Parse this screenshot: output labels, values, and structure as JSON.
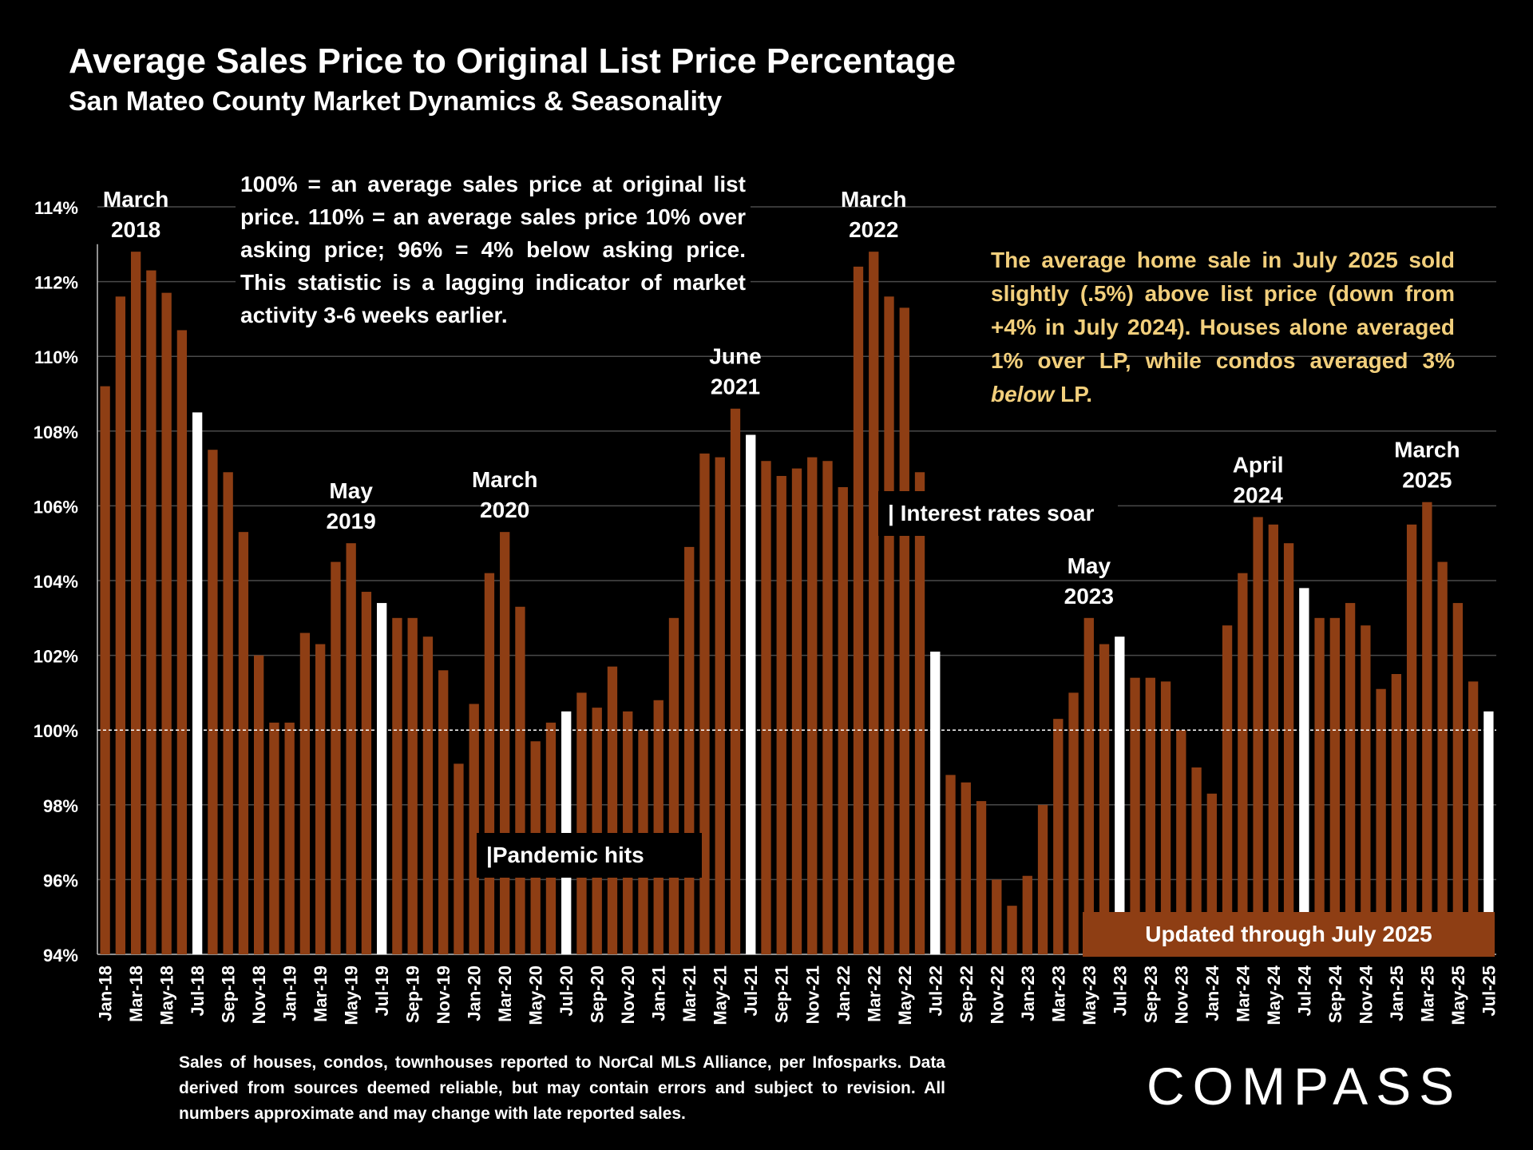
{
  "header": {
    "title": "Average Sales Price to Original List Price Percentage",
    "subtitle": "San Mateo County Market Dynamics & Seasonality"
  },
  "note": "100% = an average sales price at original list price. 110% = an average sales price 10% over asking price; 96% = 4% below asking price. This statistic is a lagging indicator of market activity 3-6 weeks earlier.",
  "summary": {
    "part1": "The average home sale in July 2025 sold slightly (.5%) above list price (down from +4% in July 2024). Houses alone averaged 1% over LP, while condos averaged 3% ",
    "emph": "below",
    "part2": " LP."
  },
  "footnote": "Sales of houses, condos, townhouses reported to NorCal MLS Alliance, per Infosparks. Data derived from sources deemed reliable, but may contain errors and subject to revision. All numbers approximate and may change with late reported sales.",
  "logo": "COMPASS",
  "colors": {
    "bar": "#8e3e14",
    "highlight": "#ffffff",
    "summary_text": "#f2cf7c",
    "background": "#000000"
  },
  "chart_data": {
    "type": "bar",
    "y_unit": "%",
    "ylim": [
      94,
      114
    ],
    "yticks": [
      94,
      96,
      98,
      100,
      102,
      104,
      106,
      108,
      110,
      112,
      114
    ],
    "ytick_labels": [
      "94%",
      "96%",
      "98%",
      "100%",
      "102%",
      "104%",
      "106%",
      "108%",
      "110%",
      "112%",
      "114%"
    ],
    "reference_line": 100,
    "grid": true,
    "categories": [
      "Jan-18",
      "Feb-18",
      "Mar-18",
      "Apr-18",
      "May-18",
      "Jun-18",
      "Jul-18",
      "Aug-18",
      "Sep-18",
      "Oct-18",
      "Nov-18",
      "Dec-18",
      "Jan-19",
      "Feb-19",
      "Mar-19",
      "Apr-19",
      "May-19",
      "Jun-19",
      "Jul-19",
      "Aug-19",
      "Sep-19",
      "Oct-19",
      "Nov-19",
      "Dec-19",
      "Jan-20",
      "Feb-20",
      "Mar-20",
      "Apr-20",
      "May-20",
      "Jun-20",
      "Jul-20",
      "Aug-20",
      "Sep-20",
      "Oct-20",
      "Nov-20",
      "Dec-20",
      "Jan-21",
      "Feb-21",
      "Mar-21",
      "Apr-21",
      "May-21",
      "Jun-21",
      "Jul-21",
      "Aug-21",
      "Sep-21",
      "Oct-21",
      "Nov-21",
      "Dec-21",
      "Jan-22",
      "Feb-22",
      "Mar-22",
      "Apr-22",
      "May-22",
      "Jun-22",
      "Jul-22",
      "Aug-22",
      "Sep-22",
      "Oct-22",
      "Nov-22",
      "Dec-22",
      "Jan-23",
      "Feb-23",
      "Mar-23",
      "Apr-23",
      "May-23",
      "Jun-23",
      "Jul-23",
      "Aug-23",
      "Sep-23",
      "Oct-23",
      "Nov-23",
      "Dec-23",
      "Jan-24",
      "Feb-24",
      "Mar-24",
      "Apr-24",
      "May-24",
      "Jun-24",
      "Jul-24",
      "Aug-24",
      "Sep-24",
      "Oct-24",
      "Nov-24",
      "Dec-24",
      "Jan-25",
      "Feb-25",
      "Mar-25",
      "Apr-25",
      "May-25",
      "Jun-25",
      "Jul-25"
    ],
    "values": [
      109.2,
      111.6,
      112.8,
      112.3,
      111.7,
      110.7,
      108.5,
      107.5,
      106.9,
      105.3,
      102.0,
      100.2,
      100.2,
      102.6,
      102.3,
      104.5,
      105.0,
      103.7,
      103.4,
      103.0,
      103.0,
      102.5,
      101.6,
      99.1,
      100.7,
      104.2,
      105.3,
      103.3,
      99.7,
      100.2,
      100.5,
      101.0,
      100.6,
      101.7,
      100.5,
      100.0,
      100.8,
      103.0,
      104.9,
      107.4,
      107.3,
      108.6,
      107.9,
      107.2,
      106.8,
      107.0,
      107.3,
      107.2,
      106.5,
      112.4,
      112.8,
      111.6,
      111.3,
      106.9,
      102.1,
      98.8,
      98.6,
      98.1,
      96.0,
      95.3,
      96.1,
      98.0,
      100.3,
      101.0,
      103.0,
      102.3,
      102.5,
      101.4,
      101.4,
      101.3,
      100.0,
      99.0,
      98.3,
      102.8,
      104.2,
      105.7,
      105.5,
      105.0,
      103.8,
      103.0,
      103.0,
      103.4,
      102.8,
      101.1,
      101.5,
      105.5,
      106.1,
      104.5,
      103.4,
      101.3,
      100.5
    ],
    "highlight_months": [
      "Jul-18",
      "Jul-19",
      "Jul-20",
      "Jul-21",
      "Jul-22",
      "Jul-23",
      "Jul-24",
      "Jul-25"
    ],
    "peak_labels": [
      {
        "category": "Mar-18",
        "line1": "March",
        "line2": "2018"
      },
      {
        "category": "May-19",
        "line1": "May",
        "line2": "2019"
      },
      {
        "category": "Mar-20",
        "line1": "March",
        "line2": "2020"
      },
      {
        "category": "Jun-21",
        "line1": "June",
        "line2": "2021"
      },
      {
        "category": "Mar-22",
        "line1": "March",
        "line2": "2022"
      },
      {
        "category": "May-23",
        "line1": "May",
        "line2": "2023"
      },
      {
        "category": "Apr-24",
        "line1": "April",
        "line2": "2024"
      },
      {
        "category": "Mar-25",
        "line1": "March",
        "line2": "2025"
      }
    ],
    "event_annotations": [
      {
        "text": "|Pandemic hits",
        "category": "Mar-20"
      },
      {
        "text": "| Interest rates soar",
        "category": "Mar-22"
      }
    ],
    "updated_label": "Updated through July 2025"
  }
}
